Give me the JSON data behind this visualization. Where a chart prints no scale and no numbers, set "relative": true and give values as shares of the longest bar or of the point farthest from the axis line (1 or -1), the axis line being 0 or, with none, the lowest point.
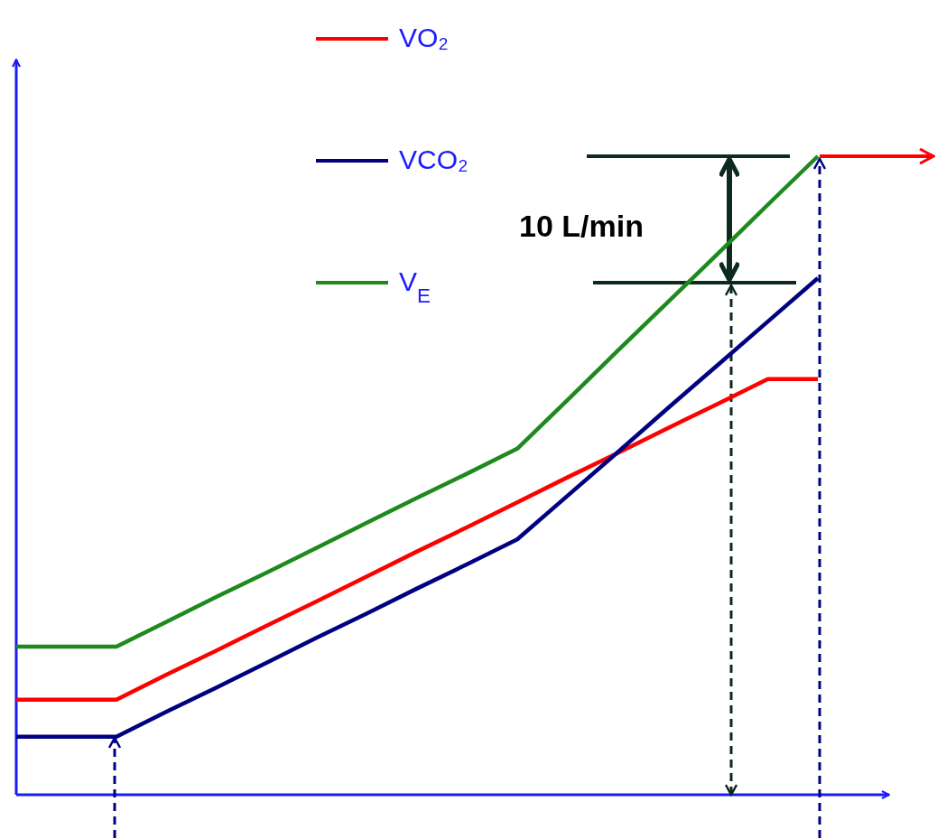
{
  "chart_data": {
    "type": "line",
    "relative": true,
    "categories": [
      null,
      null,
      null,
      null,
      null,
      null,
      null,
      null,
      null,
      null,
      null,
      null,
      null,
      null,
      null,
      null,
      null
    ],
    "legend": "top left",
    "annotations": [
      "10 L/min"
    ],
    "series": [
      {
        "name": "VO₂",
        "color": "#ff0000",
        "values": [
          0.149,
          0.149,
          0.149,
          0.188,
          0.226,
          0.265,
          0.303,
          0.342,
          0.381,
          0.419,
          0.458,
          0.497,
          0.535,
          0.574,
          0.612,
          0.651,
          0.651
        ]
      },
      {
        "name": "VCO₂",
        "color": "#000080",
        "values": [
          0.091,
          0.091,
          0.091,
          0.13,
          0.168,
          0.207,
          0.246,
          0.284,
          0.323,
          0.361,
          0.4,
          0.468,
          0.536,
          0.605,
          0.673,
          0.741,
          0.809
        ]
      },
      {
        "name": "V$_{E}$",
        "color": "#1e8a1e",
        "values": [
          0.232,
          0.232,
          0.232,
          0.271,
          0.31,
          0.348,
          0.387,
          0.426,
          0.465,
          0.503,
          0.542,
          0.618,
          0.695,
          0.771,
          0.847,
          0.924,
          1
        ]
      }
    ]
  }
}
